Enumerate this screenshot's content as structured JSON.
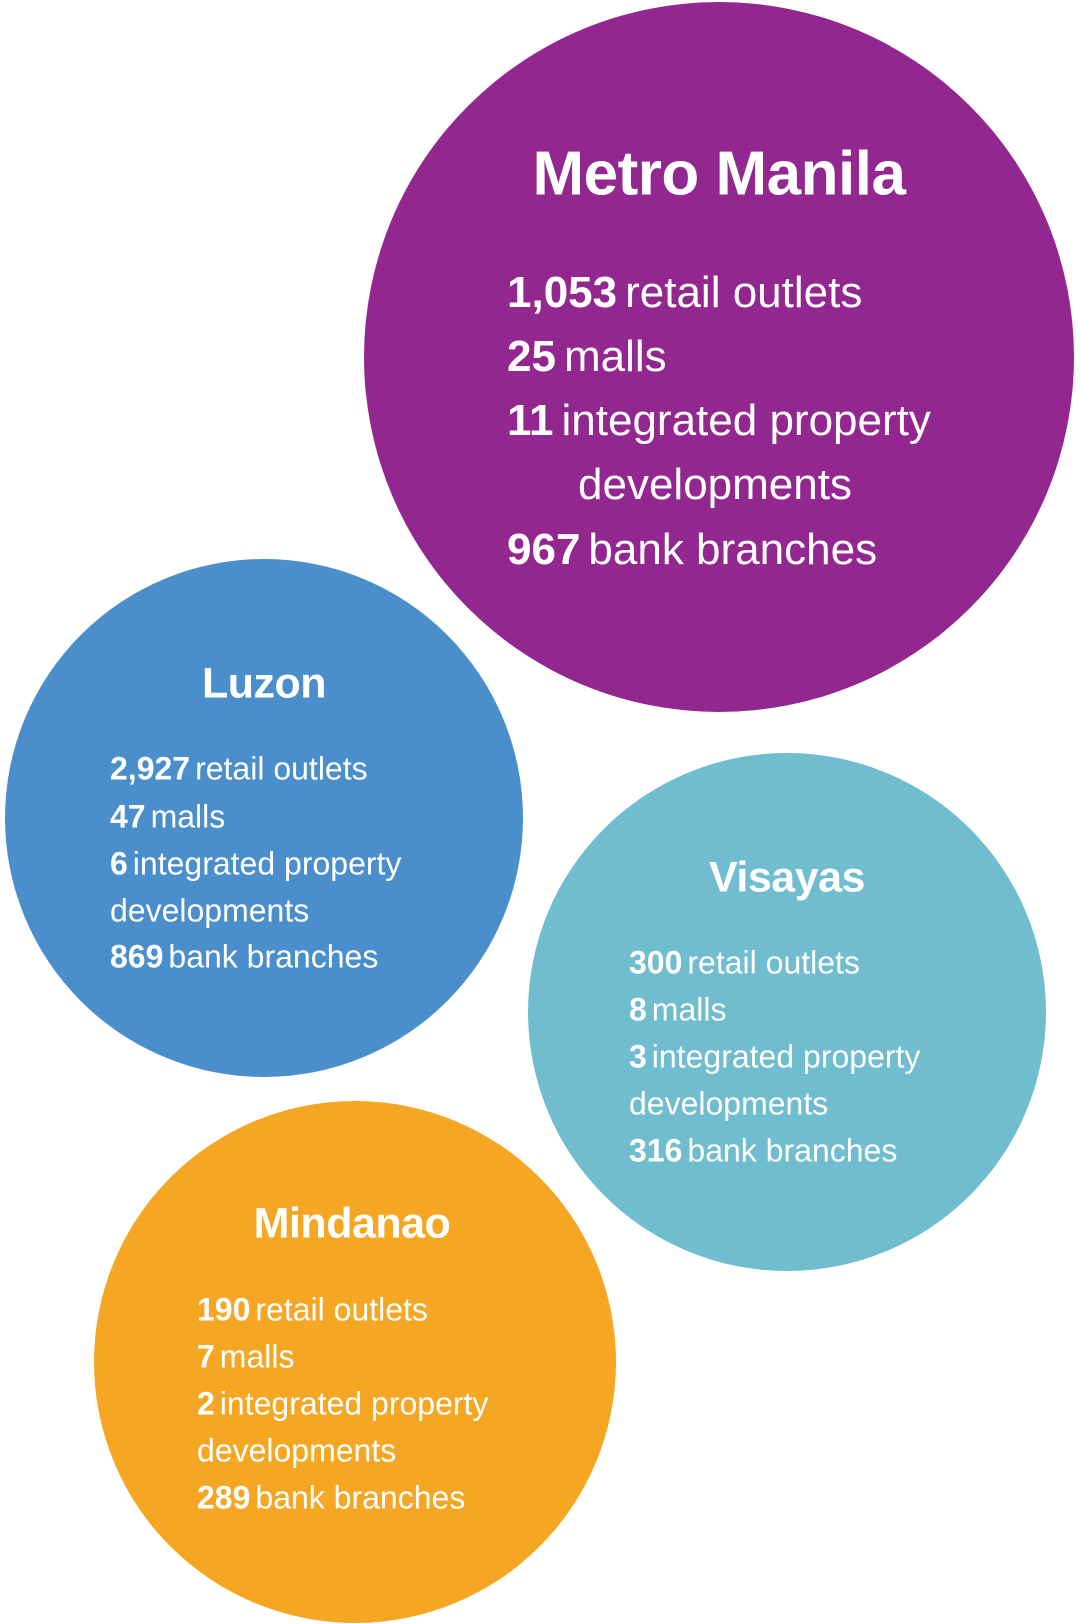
{
  "colors": {
    "metro_manila": "#92278f",
    "luzon": "#4a8fcc",
    "visayas": "#70bdd0",
    "mindanao": "#f5a623"
  },
  "metro_manila": {
    "title": "Metro Manila",
    "retail_value": "1,053",
    "retail_label": "retail outlets",
    "malls_value": "25",
    "malls_label": "malls",
    "ipd_value": "11",
    "ipd_label": "integrated property",
    "ipd_label_cont": "developments",
    "bank_value": "967",
    "bank_label": "bank branches"
  },
  "luzon": {
    "title": "Luzon",
    "retail_value": "2,927",
    "retail_label": "retail outlets",
    "malls_value": "47",
    "malls_label": "malls",
    "ipd_value": "6",
    "ipd_label": "integrated property",
    "ipd_label_cont": "developments",
    "bank_value": "869",
    "bank_label": "bank branches"
  },
  "visayas": {
    "title": "Visayas",
    "retail_value": "300",
    "retail_label": "retail outlets",
    "malls_value": "8",
    "malls_label": "malls",
    "ipd_value": "3",
    "ipd_label": "integrated property",
    "ipd_label_cont": "developments",
    "bank_value": "316",
    "bank_label": "bank branches"
  },
  "mindanao": {
    "title": "Mindanao",
    "retail_value": "190",
    "retail_label": "retail outlets",
    "malls_value": "7",
    "malls_label": "malls",
    "ipd_value": "2",
    "ipd_label": "integrated property",
    "ipd_label_cont": "developments",
    "bank_value": "289",
    "bank_label": "bank branches"
  }
}
